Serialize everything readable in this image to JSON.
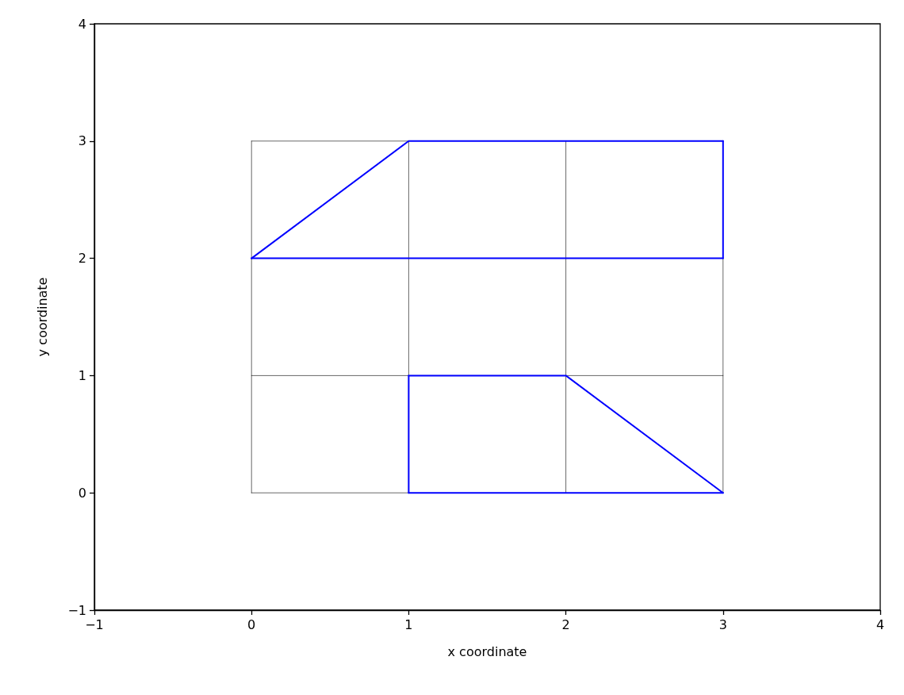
{
  "chart_data": {
    "type": "line",
    "xlabel": "x coordinate",
    "ylabel": "y coordinate",
    "xlim": [
      -1,
      4
    ],
    "xticks": [
      -1,
      0,
      1,
      2,
      3,
      4
    ],
    "ylim": [
      -1,
      4
    ],
    "yticks": [
      -1,
      0,
      1,
      2,
      3,
      4
    ],
    "marker": "none",
    "line_style": "solid",
    "grid": false,
    "series": [
      {
        "color": "#000000",
        "x": [
          0,
          0
        ],
        "values": [
          0,
          3
        ]
      },
      {
        "color": "#000000",
        "x": [
          1,
          1
        ],
        "values": [
          0,
          3
        ]
      },
      {
        "color": "#000000",
        "x": [
          2,
          2
        ],
        "values": [
          0,
          3
        ]
      },
      {
        "color": "#000000",
        "x": [
          3,
          3
        ],
        "values": [
          0,
          2
        ]
      },
      {
        "color": "#000000",
        "x": [
          0,
          1
        ],
        "values": [
          0,
          0
        ]
      },
      {
        "color": "#000000",
        "x": [
          0,
          3
        ],
        "values": [
          1,
          1
        ]
      },
      {
        "color": "#000000",
        "x": [
          0,
          1
        ],
        "values": [
          3,
          3
        ]
      },
      {
        "color": "#0000ff",
        "x": [
          0,
          1,
          3
        ],
        "values": [
          2,
          3,
          3
        ]
      },
      {
        "color": "#0000ff",
        "x": [
          0,
          3
        ],
        "values": [
          2,
          2
        ]
      },
      {
        "color": "#0000ff",
        "x": [
          3,
          3
        ],
        "values": [
          2,
          3
        ]
      },
      {
        "color": "#0000ff",
        "x": [
          1,
          1
        ],
        "values": [
          0,
          1
        ]
      },
      {
        "color": "#0000ff",
        "x": [
          1,
          2,
          3
        ],
        "values": [
          1,
          1,
          0
        ]
      },
      {
        "color": "#0000ff",
        "x": [
          1,
          3
        ],
        "values": [
          0,
          0
        ]
      }
    ]
  }
}
